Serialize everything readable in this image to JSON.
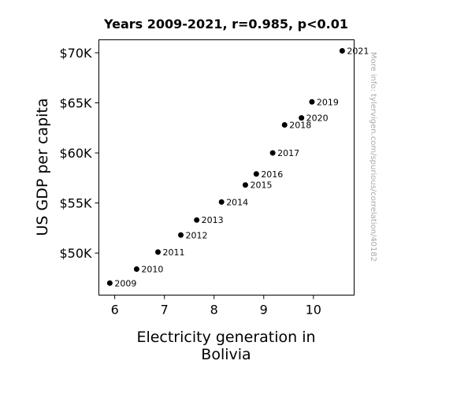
{
  "chart_data": {
    "type": "scatter",
    "title": "Years 2009-2021, r=0.985, p<0.01",
    "xlabel_lines": [
      "Electricity generation in",
      "Bolivia"
    ],
    "ylabel": "US GDP per capita",
    "xlim": [
      5.68,
      10.82
    ],
    "ylim": [
      45800,
      71300
    ],
    "xticks": [
      {
        "value": 6,
        "label": "6"
      },
      {
        "value": 7,
        "label": "7"
      },
      {
        "value": 8,
        "label": "8"
      },
      {
        "value": 9,
        "label": "9"
      },
      {
        "value": 10,
        "label": "10"
      }
    ],
    "yticks": [
      {
        "value": 50000,
        "label": "$50K"
      },
      {
        "value": 55000,
        "label": "$55K"
      },
      {
        "value": 60000,
        "label": "$60K"
      },
      {
        "value": 65000,
        "label": "$65K"
      },
      {
        "value": 70000,
        "label": "$70K"
      }
    ],
    "points": [
      {
        "label": "2009",
        "x": 5.9,
        "y": 47000
      },
      {
        "label": "2010",
        "x": 6.44,
        "y": 48400
      },
      {
        "label": "2011",
        "x": 6.87,
        "y": 50100
      },
      {
        "label": "2012",
        "x": 7.33,
        "y": 51800
      },
      {
        "label": "2013",
        "x": 7.65,
        "y": 53300
      },
      {
        "label": "2014",
        "x": 8.15,
        "y": 55100
      },
      {
        "label": "2015",
        "x": 8.63,
        "y": 56800
      },
      {
        "label": "2016",
        "x": 8.85,
        "y": 57900
      },
      {
        "label": "2017",
        "x": 9.18,
        "y": 60000
      },
      {
        "label": "2018",
        "x": 9.42,
        "y": 62800
      },
      {
        "label": "2019",
        "x": 9.97,
        "y": 65100
      },
      {
        "label": "2020",
        "x": 9.76,
        "y": 63500
      },
      {
        "label": "2021",
        "x": 10.58,
        "y": 70200
      }
    ],
    "marker_color": "#000000",
    "grid": false,
    "watermark": "More info: tylervigen.com/spurious/correlation/40182"
  }
}
